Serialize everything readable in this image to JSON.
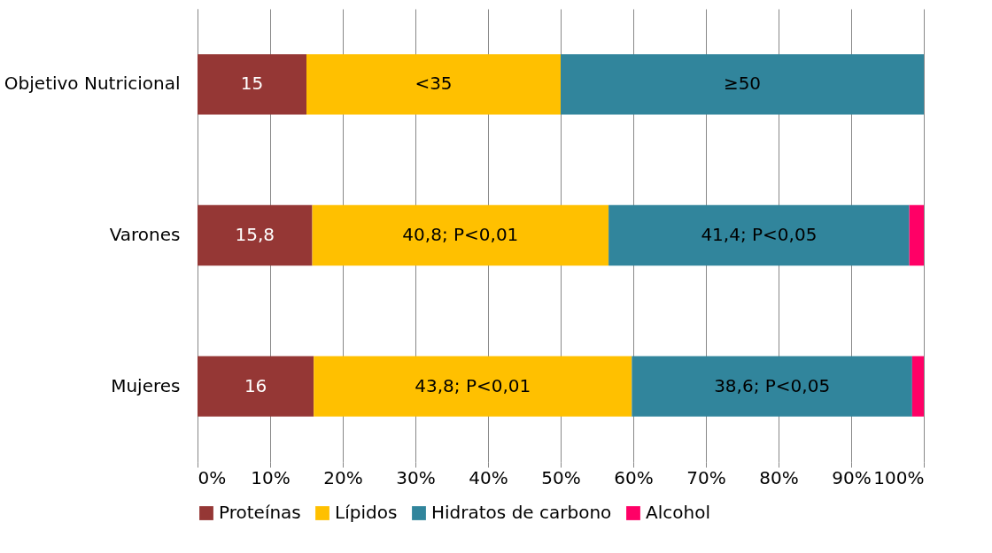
{
  "chart_data": {
    "type": "bar",
    "orientation": "horizontal",
    "stacked": true,
    "categories": [
      "Objetivo Nutricional",
      "Varones",
      "Mujeres"
    ],
    "series": [
      {
        "name": "Proteínas",
        "color": "#953735",
        "values": [
          15,
          15.8,
          16
        ],
        "value_labels": [
          "15",
          "15,8",
          "16"
        ]
      },
      {
        "name": "Lípidos",
        "color": "#ffc000",
        "values": [
          35,
          40.8,
          43.8
        ],
        "value_labels": [
          "<35",
          "40,8; P<0,01",
          "43,8; P<0,01"
        ]
      },
      {
        "name": "Hidratos de carbono",
        "color": "#31859c",
        "values": [
          50,
          41.4,
          38.6
        ],
        "value_labels": [
          "≥50",
          "41,4; P<0,05",
          "38,6; P<0,05"
        ]
      },
      {
        "name": "Alcohol",
        "color": "#ff0066",
        "values": [
          0,
          2,
          1.6
        ],
        "value_labels": [
          null,
          null,
          null
        ]
      }
    ],
    "xlim": [
      0,
      100
    ],
    "xticks": [
      {
        "value": 0,
        "label": "0%"
      },
      {
        "value": 10,
        "label": "10%"
      },
      {
        "value": 20,
        "label": "20%"
      },
      {
        "value": 30,
        "label": "30%"
      },
      {
        "value": 40,
        "label": "40%"
      },
      {
        "value": 50,
        "label": "50%"
      },
      {
        "value": 60,
        "label": "60%"
      },
      {
        "value": 70,
        "label": "70%"
      },
      {
        "value": 80,
        "label": "80%"
      },
      {
        "value": 90,
        "label": "90%"
      },
      {
        "value": 100,
        "label": "100%"
      }
    ],
    "grid": "x",
    "legend": "bottom"
  }
}
